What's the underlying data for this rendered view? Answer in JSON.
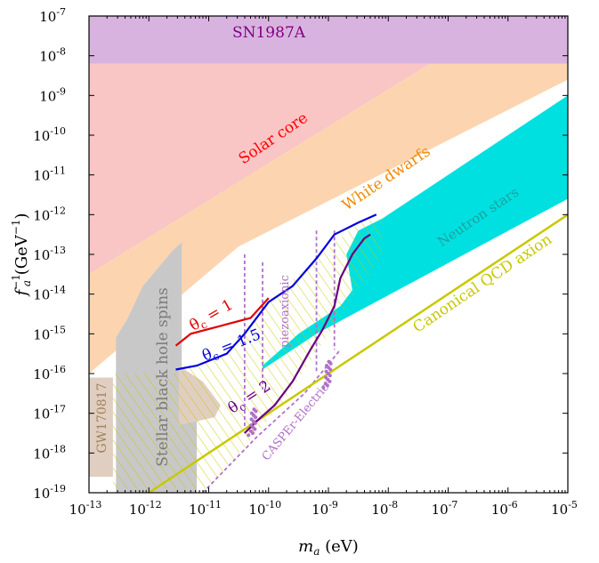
{
  "chart_data": {
    "type": "area",
    "xlabel": "m_a (eV)",
    "ylabel": "f_a^-1 (GeV^-1)",
    "xscale": "log",
    "yscale": "log",
    "xlim": [
      1e-13,
      1e-05
    ],
    "ylim": [
      1e-19,
      1e-07
    ],
    "x_ticks": [
      -13,
      -12,
      -11,
      -10,
      -9,
      -8,
      -7,
      -6,
      -5
    ],
    "y_ticks": [
      -19,
      -18,
      -17,
      -16,
      -15,
      -14,
      -13,
      -12,
      -11,
      -10,
      -9,
      -8,
      -7
    ],
    "regions": [
      {
        "name": "Solar core",
        "color": "#f9c5c5",
        "label_color": "#ff0000",
        "polygon": [
          [
            -13,
            -8.2
          ],
          [
            -13,
            -13.5
          ],
          [
            -7.3,
            -8.2
          ]
        ]
      },
      {
        "name": "White dwarfs",
        "color": "#fcd5b0",
        "label_color": "#f08a00",
        "polygon": [
          [
            -13,
            -13.5
          ],
          [
            -7.3,
            -8.2
          ],
          [
            -5,
            -8.2
          ],
          [
            -5,
            -8.6
          ],
          [
            -10.5,
            -12.8
          ],
          [
            -13,
            -16.0
          ]
        ]
      },
      {
        "name": "SN1987A",
        "color": "#d9b3e0",
        "label_color": "#800080",
        "polygon": [
          [
            -13,
            -7
          ],
          [
            -5,
            -7
          ],
          [
            -5,
            -8.2
          ],
          [
            -13,
            -8.2
          ]
        ]
      },
      {
        "name": "Neutron stars",
        "color": "#00e0e0",
        "label_color": "#20a0a0",
        "polygon": [
          [
            -10.1,
            -15.8
          ],
          [
            -9.5,
            -15.0
          ],
          [
            -8.8,
            -14.3
          ],
          [
            -8.6,
            -13.9
          ],
          [
            -8.7,
            -13.0
          ],
          [
            -8.5,
            -12.4
          ],
          [
            -8.1,
            -12.1
          ],
          [
            -5,
            -9.0
          ],
          [
            -5,
            -11.6
          ],
          [
            -9.2,
            -15.0
          ],
          [
            -10.1,
            -15.9
          ]
        ]
      },
      {
        "name": "Stellar black hole spins",
        "color": "#c8c8c8",
        "label_color": "#7a7a7a",
        "polygon": [
          [
            -12.55,
            -19
          ],
          [
            -12.55,
            -15.1
          ],
          [
            -12.35,
            -14.6
          ],
          [
            -12.1,
            -13.8
          ],
          [
            -11.6,
            -12.9
          ],
          [
            -11.45,
            -12.7
          ],
          [
            -11.45,
            -16.3
          ],
          [
            -11.2,
            -16.8
          ],
          [
            -11.2,
            -19
          ]
        ]
      },
      {
        "name": "GW170817",
        "color": "#e0cfc0",
        "label_color": "#a08060",
        "polygon": [
          [
            -13,
            -18.6
          ],
          [
            -12.6,
            -18.6
          ],
          [
            -12.6,
            -16.1
          ],
          [
            -13,
            -16.1
          ]
        ]
      }
    ],
    "curves": [
      {
        "name": "θc = 1",
        "color": "#e00000",
        "points": [
          [
            -11.55,
            -15.3
          ],
          [
            -11.3,
            -15.0
          ],
          [
            -10.8,
            -14.8
          ],
          [
            -10.3,
            -14.6
          ],
          [
            -10.0,
            -14.1
          ]
        ]
      },
      {
        "name": "θc = 1.5",
        "color": "#0000e0",
        "points": [
          [
            -11.55,
            -15.9
          ],
          [
            -11.2,
            -15.8
          ],
          [
            -10.7,
            -15.5
          ],
          [
            -10.4,
            -15.0
          ],
          [
            -10.0,
            -14.2
          ],
          [
            -9.6,
            -13.8
          ],
          [
            -9.2,
            -13.1
          ],
          [
            -8.9,
            -12.5
          ],
          [
            -8.5,
            -12.2
          ],
          [
            -8.2,
            -12.0
          ]
        ]
      },
      {
        "name": "θc = 2",
        "color": "#6a0080",
        "points": [
          [
            -10.4,
            -17.5
          ],
          [
            -10.2,
            -17.2
          ],
          [
            -9.9,
            -16.8
          ],
          [
            -9.6,
            -16.2
          ],
          [
            -9.3,
            -15.4
          ],
          [
            -9.1,
            -14.9
          ],
          [
            -8.9,
            -14.3
          ],
          [
            -8.8,
            -13.6
          ],
          [
            -8.6,
            -13.0
          ],
          [
            -8.4,
            -12.6
          ],
          [
            -8.3,
            -12.5
          ]
        ]
      },
      {
        "name": "Canonical QCD axion",
        "color": "#c8c800",
        "points": [
          [
            -12.0,
            -19.0
          ],
          [
            -5.0,
            -12.0
          ]
        ]
      }
    ],
    "proposals": [
      {
        "name": "piezoaxionic",
        "color": "#b070c8"
      },
      {
        "name": "CASPEr-Electric",
        "color": "#b070c8"
      }
    ]
  },
  "labels": {
    "xlabel_main": "m",
    "xlabel_sub": "a",
    "xlabel_unit": " (eV)",
    "ylabel_main": "f",
    "ylabel_sup": "−1",
    "ylabel_sub": "a",
    "ylabel_unit": "  (GeV",
    "ylabel_unit_sup": "−1",
    "ylabel_unit_close": ")",
    "theta1": "θ",
    "theta1_sub": "c",
    "theta1_rest": " = 1",
    "theta15": "θ",
    "theta15_sub": "c",
    "theta15_rest": " = 1.5",
    "theta2": "θ",
    "theta2_sub": "c",
    "theta2_rest": " = 2"
  }
}
